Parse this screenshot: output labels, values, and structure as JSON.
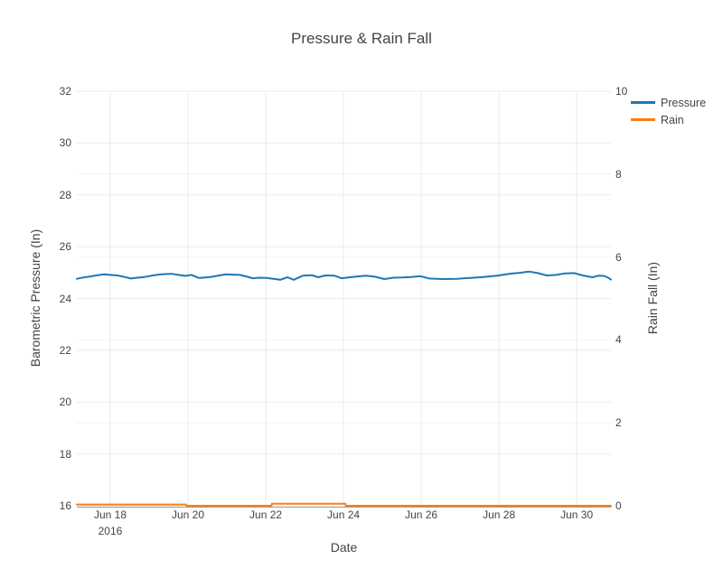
{
  "chart_data": {
    "type": "line",
    "title": "Pressure & Rain Fall",
    "xlabel": "Date",
    "grid": true,
    "legend_position": "top-right",
    "background": "#ffffff",
    "xaxis": {
      "unit": "day of June 2016",
      "range": [
        17.14,
        30.88
      ],
      "ticks": [
        {
          "value": 18,
          "label": "Jun 18",
          "sub": "2016"
        },
        {
          "value": 20,
          "label": "Jun 20"
        },
        {
          "value": 22,
          "label": "Jun 22"
        },
        {
          "value": 24,
          "label": "Jun 24"
        },
        {
          "value": 26,
          "label": "Jun 26"
        },
        {
          "value": 28,
          "label": "Jun 28"
        },
        {
          "value": 30,
          "label": "Jun 30"
        }
      ]
    },
    "yaxis_left": {
      "label": "Barometric Pressure (In)",
      "range": [
        16,
        32
      ],
      "ticks": [
        16,
        18,
        20,
        22,
        24,
        26,
        28,
        30,
        32
      ]
    },
    "yaxis_right": {
      "label": "Rain Fall (In)",
      "range": [
        0,
        10
      ],
      "ticks": [
        0,
        2,
        4,
        6,
        8,
        10
      ]
    },
    "series": [
      {
        "name": "Pressure",
        "color": "#1f77b4",
        "axis": "left",
        "x": [
          17.14,
          17.3,
          17.49,
          17.67,
          17.84,
          18.0,
          18.19,
          18.37,
          18.53,
          18.7,
          18.88,
          19.05,
          19.23,
          19.4,
          19.58,
          19.75,
          19.93,
          20.09,
          20.28,
          20.45,
          20.63,
          20.8,
          20.98,
          21.15,
          21.33,
          21.5,
          21.67,
          21.85,
          22.02,
          22.2,
          22.37,
          22.56,
          22.72,
          22.95,
          23.19,
          23.35,
          23.53,
          23.77,
          23.95,
          24.12,
          24.35,
          24.58,
          24.81,
          25.05,
          25.28,
          25.51,
          25.74,
          25.98,
          26.21,
          26.56,
          26.91,
          27.26,
          27.6,
          27.95,
          28.3,
          28.53,
          28.77,
          29.0,
          29.23,
          29.47,
          29.7,
          29.93,
          30.16,
          30.4,
          30.56,
          30.7,
          30.81,
          30.88
        ],
        "y": [
          24.76,
          24.81,
          24.85,
          24.9,
          24.93,
          24.91,
          24.89,
          24.83,
          24.77,
          24.8,
          24.83,
          24.88,
          24.92,
          24.94,
          24.95,
          24.91,
          24.87,
          24.91,
          24.79,
          24.81,
          24.84,
          24.89,
          24.93,
          24.92,
          24.91,
          24.85,
          24.78,
          24.8,
          24.79,
          24.76,
          24.72,
          24.82,
          24.72,
          24.88,
          24.9,
          24.82,
          24.89,
          24.88,
          24.78,
          24.81,
          24.85,
          24.88,
          24.84,
          24.75,
          24.8,
          24.81,
          24.83,
          24.86,
          24.77,
          24.75,
          24.76,
          24.79,
          24.83,
          24.88,
          24.96,
          24.99,
          25.04,
          24.98,
          24.89,
          24.91,
          24.97,
          24.98,
          24.89,
          24.82,
          24.88,
          24.87,
          24.8,
          24.73
        ]
      },
      {
        "name": "Rain",
        "color": "#ff7f0e",
        "axis": "right",
        "x": [
          17.14,
          19.95,
          19.96,
          22.15,
          22.16,
          24.05,
          24.06,
          30.88
        ],
        "y": [
          0.03,
          0.03,
          0.0,
          0.0,
          0.05,
          0.05,
          0.0,
          0.0
        ]
      }
    ]
  }
}
